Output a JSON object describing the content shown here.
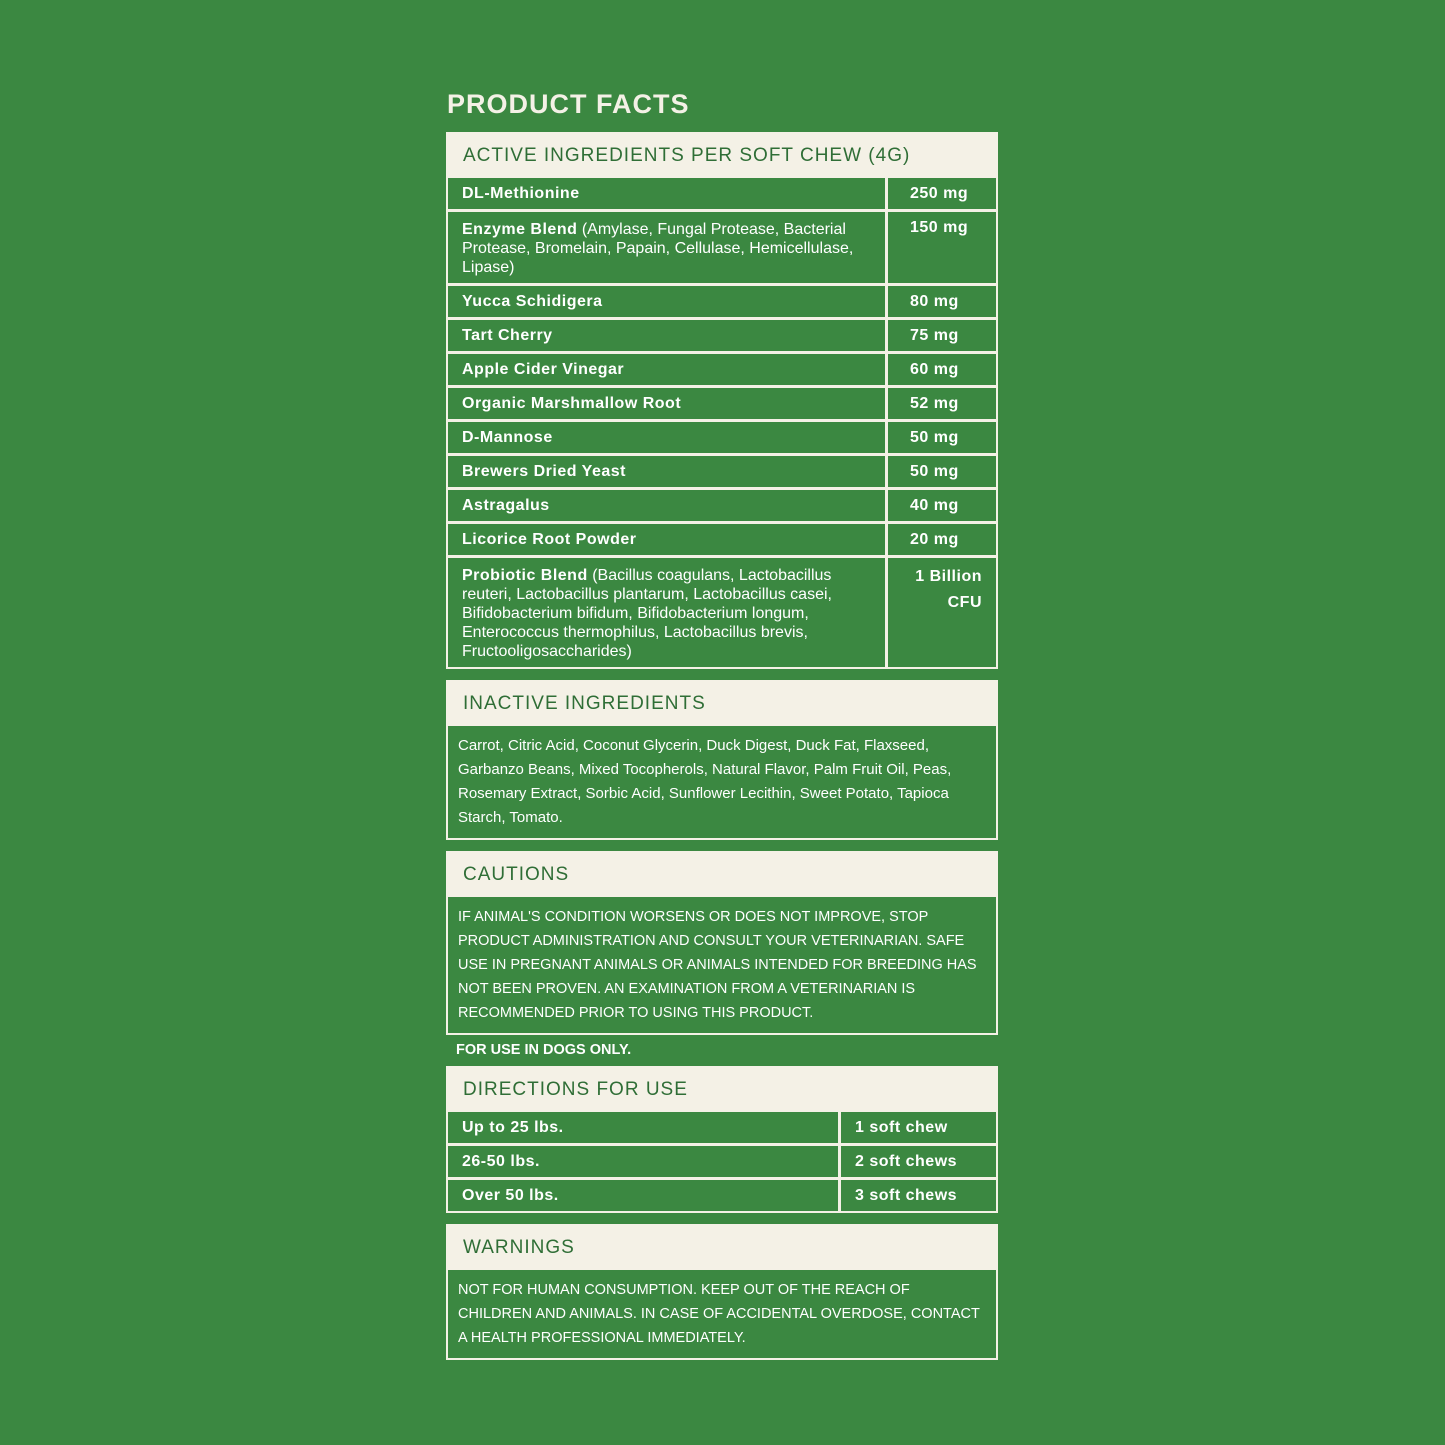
{
  "title": "PRODUCT FACTS",
  "active": {
    "header": "ACTIVE INGREDIENTS PER SOFT CHEW (4G)",
    "rows": [
      {
        "name": "DL-Methionine",
        "detail": "",
        "amount": "250 mg"
      },
      {
        "name": "Enzyme Blend",
        "detail": "(Amylase, Fungal Protease, Bacterial Protease, Bromelain, Papain, Cellulase, Hemicellulase, Lipase)",
        "amount": "150 mg"
      },
      {
        "name": "Yucca Schidigera",
        "detail": "",
        "amount": "80 mg"
      },
      {
        "name": "Tart Cherry",
        "detail": "",
        "amount": "75 mg"
      },
      {
        "name": "Apple Cider Vinegar",
        "detail": "",
        "amount": "60 mg"
      },
      {
        "name": "Organic Marshmallow Root",
        "detail": "",
        "amount": "52 mg"
      },
      {
        "name": "D-Mannose",
        "detail": "",
        "amount": "50 mg"
      },
      {
        "name": "Brewers Dried Yeast",
        "detail": "",
        "amount": "50 mg"
      },
      {
        "name": "Astragalus",
        "detail": "",
        "amount": "40 mg"
      },
      {
        "name": "Licorice Root Powder",
        "detail": "",
        "amount": "20 mg"
      },
      {
        "name": "Probiotic Blend",
        "detail": "(Bacillus coagulans, Lactobacillus reuteri, Lactobacillus plantarum, Lactobacillus casei, Bifidobacterium bifidum, Bifidobacterium longum, Enterococcus thermophilus, Lactobacillus brevis, Fructooligosaccharides)",
        "amount": "1 Billion CFU"
      }
    ]
  },
  "inactive": {
    "header": "INACTIVE INGREDIENTS",
    "text": "Carrot, Citric Acid, Coconut Glycerin, Duck Digest,  Duck Fat, Flaxseed, Garbanzo Beans, Mixed Tocopherols, Natural Flavor, Palm Fruit Oil, Peas, Rosemary Extract, Sorbic Acid, Sunflower Lecithin, Sweet Potato, Tapioca Starch, Tomato."
  },
  "cautions": {
    "header": "CAUTIONS",
    "text": "IF ANIMAL'S CONDITION WORSENS OR DOES NOT IMPROVE, STOP  PRODUCT ADMINISTRATION AND CONSULT YOUR VETERINARIAN. SAFE USE IN PREGNANT ANIMALS OR ANIMALS INTENDED FOR BREEDING HAS NOT BEEN PROVEN. AN EXAMINATION FROM A VETERINARIAN IS RECOMMENDED PRIOR TO USING THIS PRODUCT.",
    "note": "FOR USE IN DOGS ONLY."
  },
  "directions": {
    "header": "DIRECTIONS FOR USE",
    "rows": [
      {
        "weight": "Up to 25 lbs.",
        "dose": "1 soft chew"
      },
      {
        "weight": "26-50 lbs.",
        "dose": "2 soft chews"
      },
      {
        "weight": "Over 50 lbs.",
        "dose": "3 soft chews"
      }
    ]
  },
  "warnings": {
    "header": "WARNINGS",
    "text": "NOT FOR HUMAN CONSUMPTION. KEEP OUT OF THE REACH OF CHILDREN AND ANIMALS. IN CASE OF ACCIDENTAL OVERDOSE, CONTACT A HEALTH PROFESSIONAL IMMEDIATELY."
  },
  "colors": {
    "background": "#3b8841",
    "panel": "#f4f1e6",
    "header_text": "#2f6e36"
  }
}
